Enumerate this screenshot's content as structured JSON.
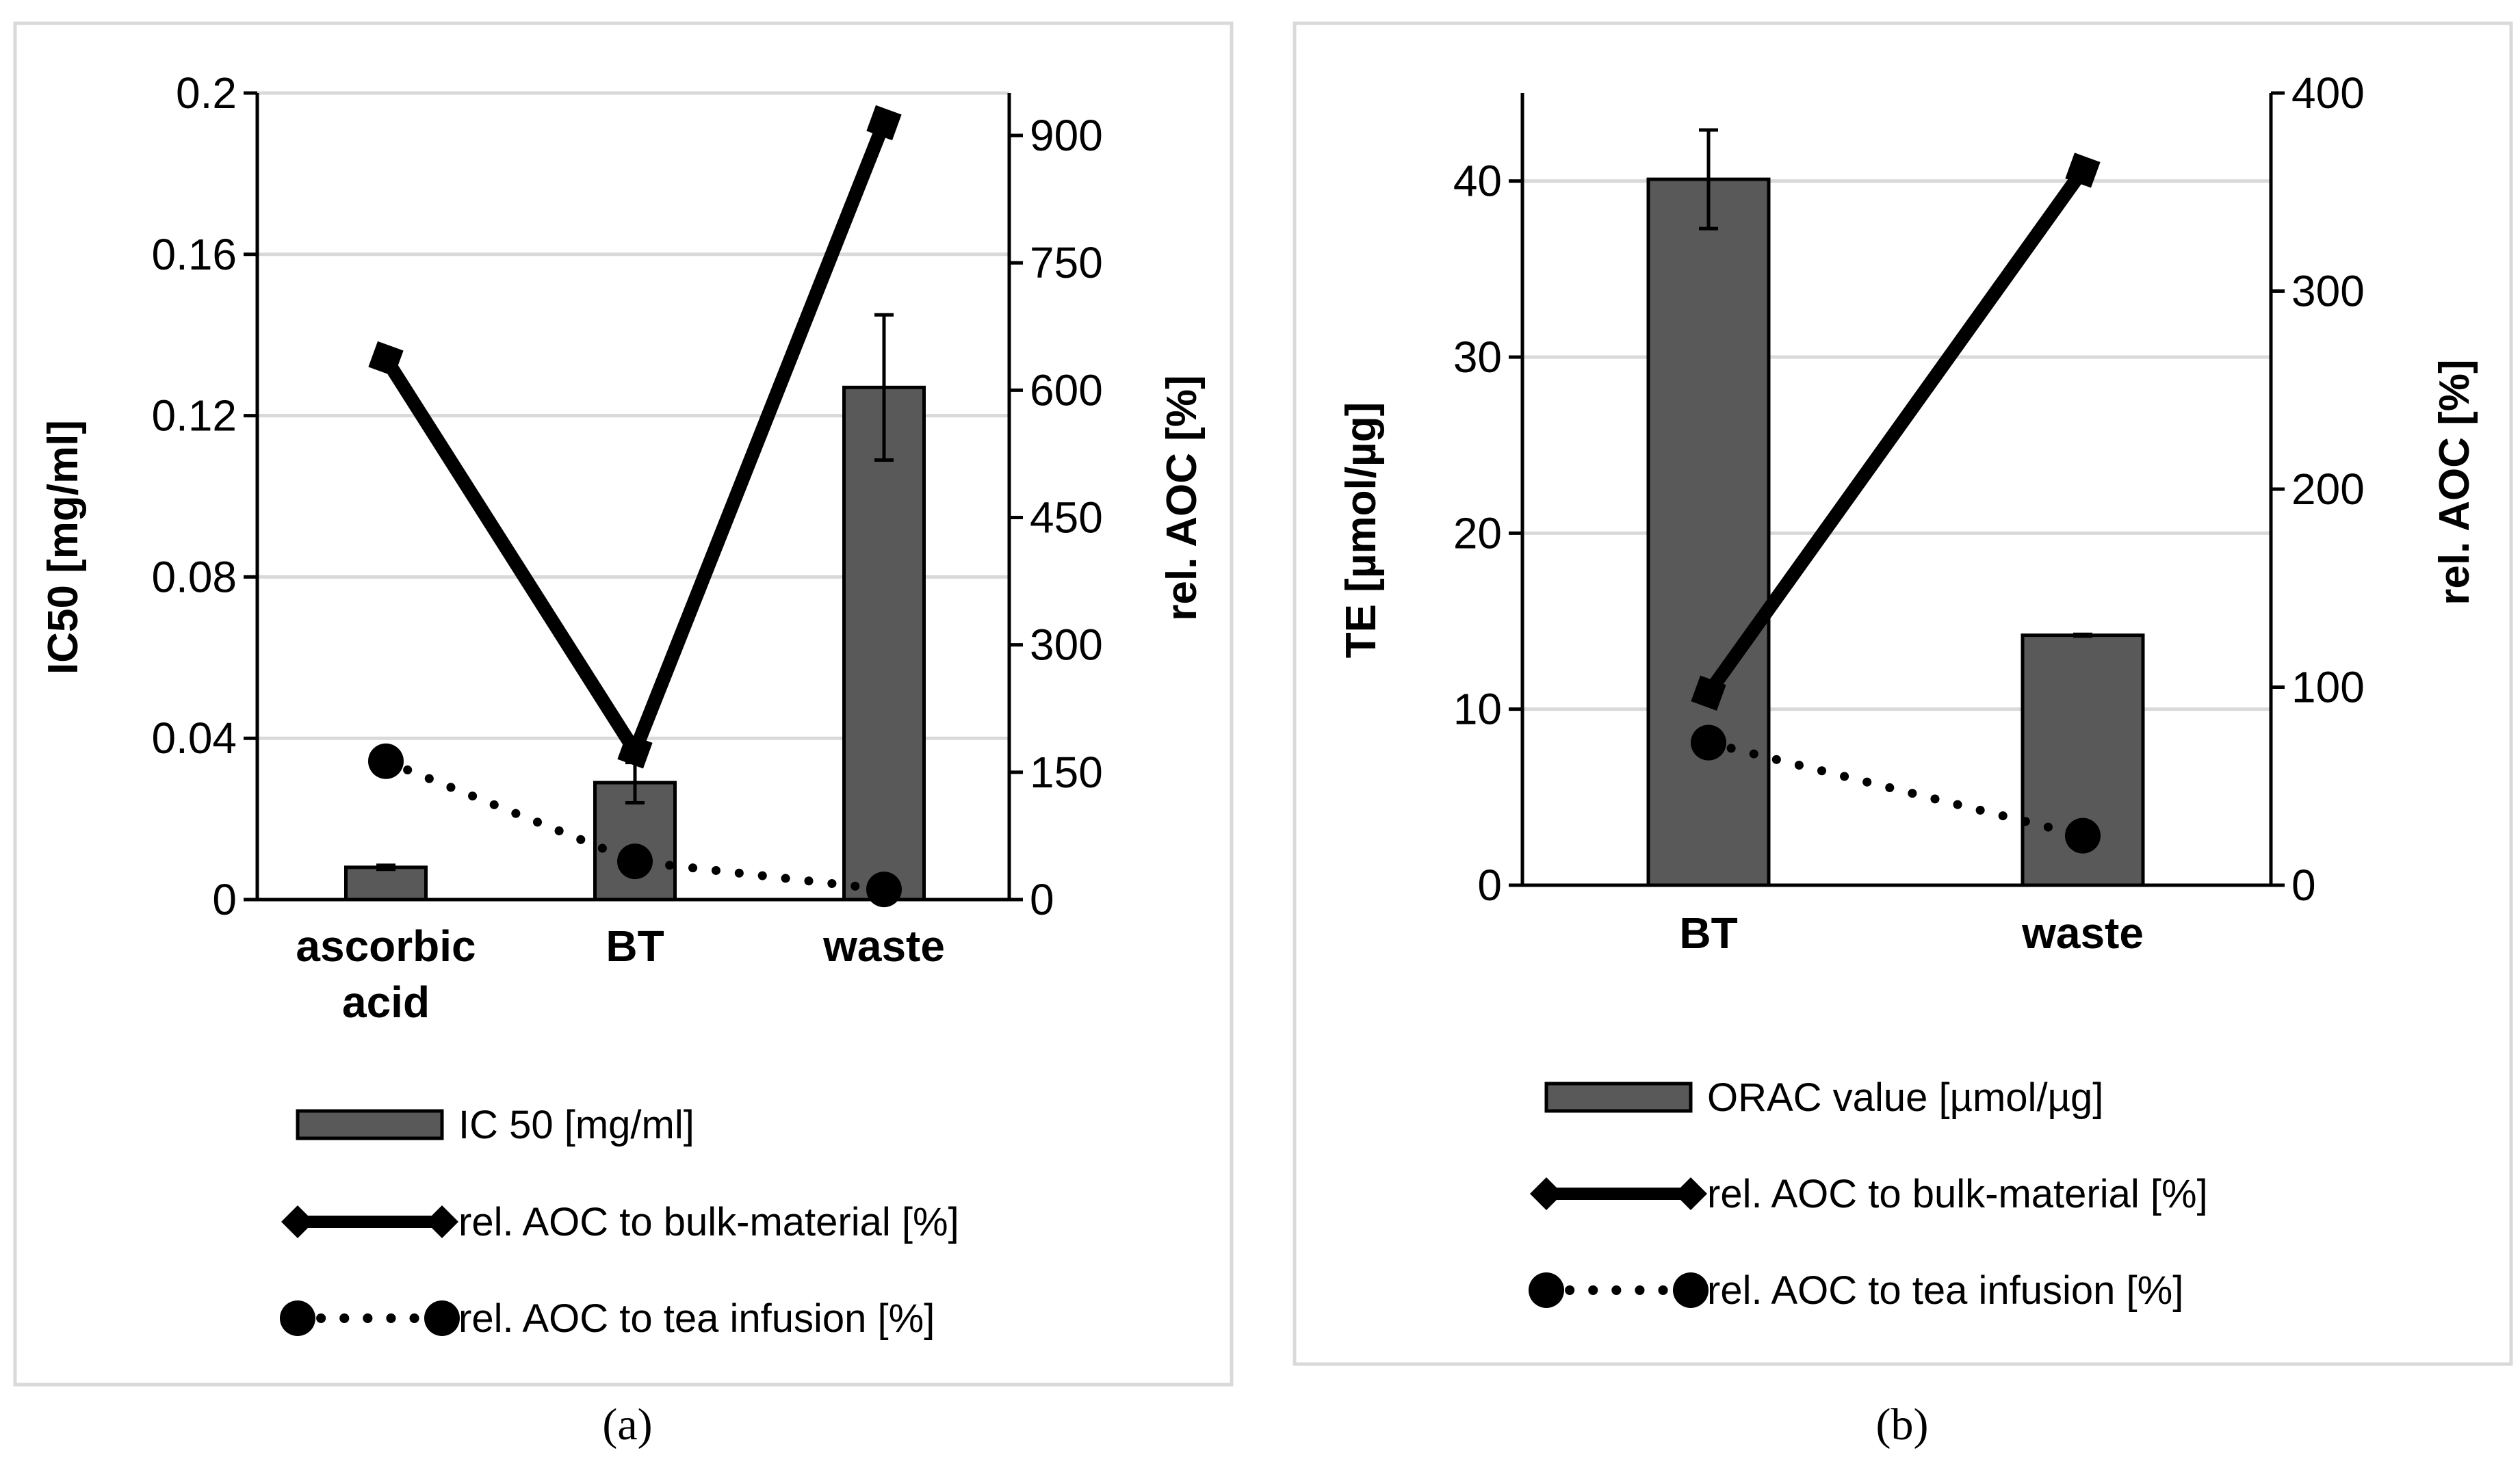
{
  "chart_data": [
    {
      "type": "bar+line",
      "panel_label": "(a)",
      "categories": [
        "ascorbic acid",
        "BT",
        "waste"
      ],
      "category_lines": [
        [
          "ascorbic",
          "acid"
        ],
        [
          "BT"
        ],
        [
          "waste"
        ]
      ],
      "ylabel": "IC50 [mg/ml]",
      "y2label": "rel. AOC [%]",
      "ylim": [
        0,
        0.2
      ],
      "yticks": [
        "0",
        "0.04",
        "0.08",
        "0.12",
        "0.16",
        "0.2"
      ],
      "ytick_values": [
        0,
        0.04,
        0.08,
        0.12,
        0.16,
        0.2
      ],
      "y2lim": [
        0,
        950
      ],
      "y2ticks": [
        "0",
        "150",
        "300",
        "450",
        "600",
        "750",
        "900"
      ],
      "y2tick_values": [
        0,
        150,
        300,
        450,
        600,
        750,
        900
      ],
      "grid": true,
      "bars": {
        "name": "IC 50 [mg/ml]",
        "values": [
          0.008,
          0.029,
          0.127
        ],
        "errors": [
          0.0005,
          0.005,
          0.018
        ],
        "color": "#595959"
      },
      "series": [
        {
          "name": "rel. AOC to bulk-material [%]",
          "values": [
            637,
            175,
            915
          ],
          "marker": "diamond",
          "style": "solid",
          "axis": "right"
        },
        {
          "name": "rel. AOC to tea infusion [%]",
          "values": [
            163,
            45,
            12
          ],
          "marker": "circle",
          "style": "dotted",
          "axis": "right"
        }
      ],
      "legend": "bottom"
    },
    {
      "type": "bar+line",
      "panel_label": "(b)",
      "categories": [
        "BT",
        "waste"
      ],
      "category_lines": [
        [
          "BT"
        ],
        [
          "waste"
        ]
      ],
      "ylabel": "TE [µmol/µg]",
      "y2label": "rel. AOC [%]",
      "ylim": [
        0,
        45
      ],
      "yticks": [
        "0",
        "10",
        "20",
        "30",
        "40"
      ],
      "ytick_values": [
        0,
        10,
        20,
        30,
        40
      ],
      "y2lim": [
        0,
        400
      ],
      "y2ticks": [
        "0",
        "100",
        "200",
        "300",
        "400"
      ],
      "y2tick_values": [
        0,
        100,
        200,
        300,
        400
      ],
      "grid": true,
      "bars": {
        "name": "ORAC value [µmol/µg]",
        "values": [
          40.1,
          14.2
        ],
        "errors": [
          2.8,
          0.05
        ],
        "color": "#595959"
      },
      "series": [
        {
          "name": "rel. AOC to bulk-material [%]",
          "values": [
            97,
            361
          ],
          "marker": "diamond",
          "style": "solid",
          "axis": "right"
        },
        {
          "name": "rel. AOC to tea infusion [%]",
          "values": [
            72,
            25
          ],
          "marker": "circle",
          "style": "dotted",
          "axis": "right"
        }
      ],
      "legend": "bottom"
    }
  ]
}
